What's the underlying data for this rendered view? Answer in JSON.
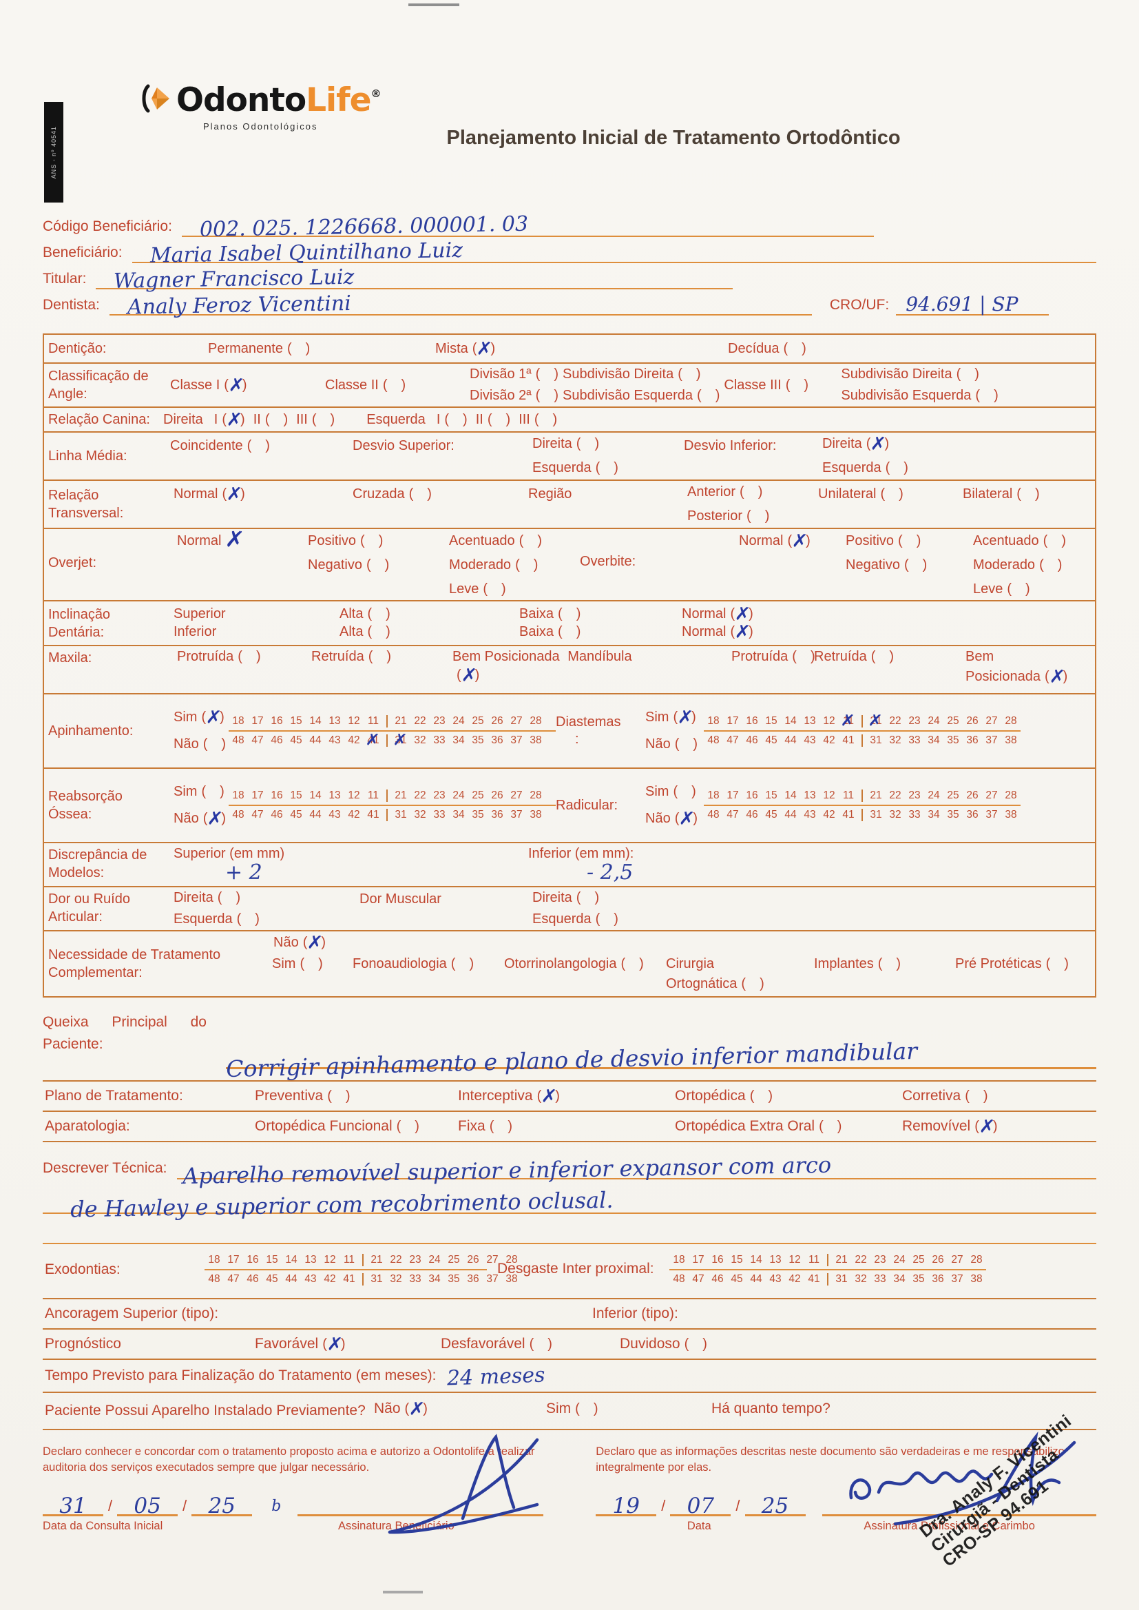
{
  "palette": {
    "form_red": "#c0452f",
    "line_orange": "#de8e3c",
    "border_orange": "#c87a36",
    "ink_blue": "#2b3d9c",
    "brand_orange": "#ee8e2e",
    "brand_black": "#161616",
    "title_brown": "#4c4036"
  },
  "misc": {
    "slash": "/"
  },
  "scan": {
    "ans_text": "ANS - nº 40541"
  },
  "header": {
    "logo_black": "Odonto",
    "logo_orange": "Life",
    "logo_reg": "®",
    "logo_subtitle": "Planos Odontológicos",
    "title": "Planejamento Inicial de Tratamento Ortodôntico"
  },
  "fields": {
    "codigo": {
      "label": "Código Beneficiário:",
      "value": "002. 025. 1226668. 000001. 03"
    },
    "beneficiario": {
      "label": "Beneficiário:",
      "value": "Maria Isabel Quintilhano Luiz"
    },
    "titular": {
      "label": "Titular:",
      "value": "Wagner Francisco Luiz"
    },
    "dentista": {
      "label": "Dentista:",
      "value": "Analy Feroz Vicentini"
    },
    "cro": {
      "label": "CRO/UF:",
      "value": "94.691 | SP"
    }
  },
  "teeth": {
    "upper": [
      [
        "18",
        "17",
        "16",
        "15",
        "14",
        "13",
        "12",
        "11"
      ],
      [
        "21",
        "22",
        "23",
        "24",
        "25",
        "26",
        "27",
        "28"
      ]
    ],
    "lower": [
      [
        "48",
        "47",
        "46",
        "45",
        "44",
        "43",
        "42",
        "41"
      ],
      [
        "31",
        "32",
        "33",
        "34",
        "35",
        "36",
        "37",
        "38"
      ]
    ]
  },
  "denticao": {
    "label": "Dentição:",
    "c1": [
      {
        "label": "Permanente",
        "checked": false
      }
    ],
    "c2": [
      {
        "label": "Mista",
        "checked": true
      }
    ],
    "c3": [
      {
        "label": "Decídua",
        "checked": false
      }
    ]
  },
  "angle": {
    "label": "Classificação de Angle:",
    "c1": [
      {
        "label": "Classe I",
        "checked": true
      }
    ],
    "c2": [
      {
        "label": "Classe II",
        "checked": false
      }
    ],
    "d1": [
      {
        "label": "Divisão 1ª",
        "checked": false
      },
      {
        "label": "Subdivisão Direita",
        "checked": false
      }
    ],
    "d2": [
      {
        "label": "Divisão 2ª",
        "checked": false
      },
      {
        "label": "Subdivisão Esquerda",
        "checked": false
      }
    ],
    "c3": [
      {
        "label": "Classe III",
        "checked": false
      }
    ],
    "s1": [
      {
        "label": "Subdivisão Direita",
        "checked": false
      }
    ],
    "s2": [
      {
        "label": "Subdivisão Esquerda",
        "checked": false
      }
    ]
  },
  "canina": {
    "label": "Relação Canina:",
    "opts": [
      {
        "heading": true,
        "label": "Direita"
      },
      {
        "label": "I",
        "checked": true
      },
      {
        "label": "II",
        "checked": false
      },
      {
        "label": "III",
        "checked": false
      },
      {
        "heading": true,
        "label": "Esquerda"
      },
      {
        "label": "I",
        "checked": false
      },
      {
        "label": "II",
        "checked": false
      },
      {
        "label": "III",
        "checked": false
      }
    ]
  },
  "linha": {
    "label": "Linha Média:",
    "h1": "Desvio Superior:",
    "h2": "Desvio Inferior:",
    "c1": [
      {
        "label": "Coincidente",
        "checked": false
      }
    ],
    "c2": [
      {
        "label": "Direita",
        "checked": false
      },
      {
        "label": "Esquerda",
        "checked": false
      }
    ],
    "c3": [
      {
        "label": "Direita",
        "checked": true
      },
      {
        "label": "Esquerda",
        "checked": false
      }
    ]
  },
  "transversal": {
    "label": "Relação Transversal:",
    "h1": "Região",
    "c1": [
      {
        "label": "Normal",
        "checked": true
      }
    ],
    "c2": [
      {
        "label": "Cruzada",
        "checked": false
      }
    ],
    "c3": [
      {
        "label": "Anterior",
        "checked": false
      },
      {
        "label": "Posterior",
        "checked": false
      }
    ],
    "c4": [
      {
        "label": "Unilateral",
        "checked": false
      }
    ],
    "c5": [
      {
        "label": "Bilateral",
        "checked": false
      }
    ]
  },
  "overjet": {
    "label": "Overjet:",
    "h1": "Overbite:",
    "c1": [
      {
        "label": "Normal",
        "checked": true,
        "bare": true
      }
    ],
    "c2": [
      {
        "label": "Positivo",
        "checked": false
      },
      {
        "label": "Negativo",
        "checked": false
      }
    ],
    "c3": [
      {
        "label": "Acentuado",
        "checked": false
      },
      {
        "label": "Moderado",
        "checked": false
      },
      {
        "label": "Leve",
        "checked": false
      }
    ],
    "c4": [
      {
        "label": "Normal",
        "checked": true
      }
    ],
    "c5": [
      {
        "label": "Positivo",
        "checked": false
      },
      {
        "label": "Negativo",
        "checked": false
      }
    ],
    "c6": [
      {
        "label": "Acentuado",
        "checked": false
      },
      {
        "label": "Moderado",
        "checked": false
      },
      {
        "label": "Leve",
        "checked": false
      }
    ]
  },
  "inclinacao": {
    "label": "Inclinação Dentária:",
    "line1": [
      {
        "heading": true,
        "label": "Superior"
      },
      {
        "label": "Alta",
        "checked": false
      },
      {
        "label": "Baixa",
        "checked": false
      },
      {
        "label": "Normal",
        "checked": true
      }
    ],
    "line2": [
      {
        "heading": true,
        "label": "Inferior"
      },
      {
        "label": "Alta",
        "checked": false
      },
      {
        "label": "Baixa",
        "checked": false
      },
      {
        "label": "Normal",
        "checked": true
      }
    ]
  },
  "maxila": {
    "label": "Maxila:",
    "bem": "Bem Posicionada",
    "mand": "Mandíbula",
    "bem2": "Bem",
    "c1": [
      {
        "label": "Protruída",
        "checked": false
      }
    ],
    "c2": [
      {
        "label": "Retruída",
        "checked": false
      }
    ],
    "bem_mark": [
      {
        "label": "",
        "checked": true
      }
    ],
    "c3": [
      {
        "label": "Protruída",
        "checked": false
      }
    ],
    "c4": [
      {
        "label": "Retruída",
        "checked": false
      }
    ],
    "pos2": [
      {
        "label": "Posicionada",
        "checked": true
      }
    ]
  },
  "apinhamento": {
    "label": "Apinhamento:",
    "sim": [
      {
        "label": "Sim",
        "checked": true
      }
    ],
    "nao": [
      {
        "label": "Não",
        "checked": false
      }
    ],
    "grid": {
      "crossed": [
        "41",
        "31"
      ]
    }
  },
  "diastemas": {
    "label": "Diastemas",
    "colon": ":",
    "sim": [
      {
        "label": "Sim",
        "checked": true
      }
    ],
    "nao": [
      {
        "label": "Não",
        "checked": false
      }
    ],
    "grid": {
      "crossed": [
        "11",
        "21"
      ]
    }
  },
  "reabsorcao": {
    "label": "Reabsorção Óssea:",
    "sim": [
      {
        "label": "Sim",
        "checked": false
      }
    ],
    "nao": [
      {
        "label": "Não",
        "checked": true
      }
    ],
    "grid": {
      "crossed": []
    }
  },
  "radicular": {
    "label": "Radicular:",
    "sim": [
      {
        "label": "Sim",
        "checked": false
      }
    ],
    "nao": [
      {
        "label": "Não",
        "checked": true
      }
    ],
    "grid": {
      "crossed": []
    }
  },
  "discrepancia": {
    "label": "Discrepância de Modelos:",
    "h1": "Superior (em mm)",
    "v1": "+ 2",
    "h2": "Inferior (em mm):",
    "v2": "- 2,5"
  },
  "dor": {
    "label": "Dor ou Ruído Articular:",
    "h1": "Dor Muscular",
    "c1": [
      {
        "label": "Direita",
        "checked": false
      },
      {
        "label": "Esquerda",
        "checked": false
      }
    ],
    "c2": [
      {
        "label": "Direita",
        "checked": false
      },
      {
        "label": "Esquerda",
        "checked": false
      }
    ]
  },
  "necessidade": {
    "label": "Necessidade de Tratamento Complementar:",
    "cir_h": "Cirurgia",
    "nao": [
      {
        "label": "Não",
        "checked": true
      }
    ],
    "n1": [
      {
        "label": "Sim",
        "checked": false
      }
    ],
    "n2": [
      {
        "label": "Fonoaudiologia",
        "checked": false
      }
    ],
    "n3": [
      {
        "label": "Otorrinolangologia",
        "checked": false
      }
    ],
    "cir": [
      {
        "label": "Ortognática",
        "checked": false
      }
    ],
    "n4": [
      {
        "label": "Implantes",
        "checked": false
      }
    ],
    "n5": [
      {
        "label": "Pré Protéticas",
        "checked": false
      }
    ]
  },
  "queixa": {
    "label": "Queixa Principal do Paciente:",
    "value": "Corrigir apinhamento e plano de desvio inferior mandibular"
  },
  "plano": {
    "label": "Plano de Tratamento:",
    "c1": [
      {
        "label": "Preventiva",
        "checked": false
      }
    ],
    "c2": [
      {
        "label": "Interceptiva",
        "checked": true
      }
    ],
    "c3": [
      {
        "label": "Ortopédica",
        "checked": false
      }
    ],
    "c4": [
      {
        "label": "Corretiva",
        "checked": false
      }
    ]
  },
  "aparatologia": {
    "label": "Aparatologia:",
    "c1": [
      {
        "label": "Ortopédica Funcional",
        "checked": false
      }
    ],
    "c2": [
      {
        "label": "Fixa",
        "checked": false
      }
    ],
    "c3": [
      {
        "label": "Ortopédica Extra Oral",
        "checked": false
      }
    ],
    "c4": [
      {
        "label": "Removível",
        "checked": true
      }
    ]
  },
  "tecnica": {
    "label": "Descrever Técnica:",
    "line1": "Aparelho removível superior e inferior expansor com arco",
    "line2": "de Hawley e superior com recobrimento oclusal."
  },
  "exodontias": {
    "label": "Exodontias:",
    "grid": {
      "crossed": []
    }
  },
  "desgaste": {
    "label": "Desgaste Inter proximal:",
    "grid": {
      "crossed": []
    }
  },
  "ancoragem": {
    "label": "Ancoragem Superior (tipo):",
    "label2": "Inferior (tipo):"
  },
  "prognostico": {
    "label": "Prognóstico",
    "c1": [
      {
        "label": "Favorável",
        "checked": true
      }
    ],
    "c2": [
      {
        "label": "Desfavorável",
        "checked": false
      }
    ],
    "c3": [
      {
        "label": "Duvidoso",
        "checked": false
      }
    ]
  },
  "tempo": {
    "label": "Tempo Previsto para Finalização do Tratamento (em meses):",
    "value": "24 meses"
  },
  "aparelho": {
    "label": "Paciente Possui Aparelho Instalado Previamente?",
    "h1": "Há quanto tempo?",
    "c1": [
      {
        "label": "Não",
        "checked": true
      }
    ],
    "c2": [
      {
        "label": "Sim",
        "checked": false
      }
    ]
  },
  "footer": {
    "left": {
      "text": "Declaro conhecer e concordar com o tratamento proposto acima e autorizo a Odontolife a realizar auditoria dos serviços executados sempre que julgar necessário.",
      "date": {
        "day": "31",
        "month": "05",
        "year": "25"
      },
      "date_label": "Data da Consulta Inicial",
      "sig_label": "Assinatura Beneficiário",
      "premark": "b"
    },
    "right": {
      "text": "Declaro que as informações descritas neste documento são verdadeiras e me responsabilizo integralmente por elas.",
      "date": {
        "day": "19",
        "month": "07",
        "year": "25"
      },
      "date_label": "Data",
      "sig_label": "Assinatura Profissional e Carimbo",
      "stamp": [
        "Dra. Analy F. Vicentini",
        "Cirurgiã - Dentista",
        "CRO-SP 94.691"
      ]
    }
  }
}
